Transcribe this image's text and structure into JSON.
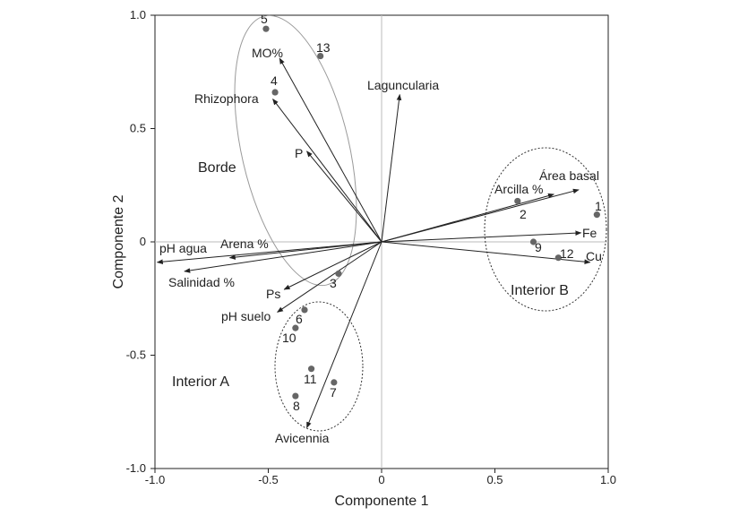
{
  "chart_data": {
    "type": "scatter",
    "xlabel": "Componente 1",
    "ylabel": "Componente 2",
    "xlim": [
      -1.0,
      1.0
    ],
    "ylim": [
      -1.0,
      1.0
    ],
    "x_ticks": [
      -1.0,
      -0.5,
      0,
      0.5,
      1.0
    ],
    "x_tick_labels": [
      "-1.0",
      "-0.5",
      "0",
      "0.5",
      "1.0"
    ],
    "y_ticks": [
      -1.0,
      -0.5,
      0,
      0.5,
      1.0
    ],
    "y_tick_labels": [
      "-1.0",
      "-0.5",
      "0",
      "0.5",
      "1.0"
    ],
    "zero_lines": true,
    "points": [
      {
        "label": "1",
        "x": 0.95,
        "y": 0.12
      },
      {
        "label": "2",
        "x": 0.6,
        "y": 0.18
      },
      {
        "label": "3",
        "x": -0.19,
        "y": -0.14
      },
      {
        "label": "4",
        "x": -0.47,
        "y": 0.66
      },
      {
        "label": "5",
        "x": -0.51,
        "y": 0.94
      },
      {
        "label": "6",
        "x": -0.34,
        "y": -0.3
      },
      {
        "label": "7",
        "x": -0.21,
        "y": -0.62
      },
      {
        "label": "8",
        "x": -0.38,
        "y": -0.68
      },
      {
        "label": "9",
        "x": 0.67,
        "y": 0.0
      },
      {
        "label": "10",
        "x": -0.38,
        "y": -0.38
      },
      {
        "label": "11",
        "x": -0.31,
        "y": -0.56
      },
      {
        "label": "12",
        "x": 0.78,
        "y": -0.07
      },
      {
        "label": "13",
        "x": -0.27,
        "y": 0.82
      }
    ],
    "vectors": [
      {
        "label": "MO%",
        "x": -0.45,
        "y": 0.81
      },
      {
        "label": "Rhizophora",
        "x": -0.48,
        "y": 0.63
      },
      {
        "label": "Laguncularia",
        "x": 0.08,
        "y": 0.65
      },
      {
        "label": "P",
        "x": -0.33,
        "y": 0.4
      },
      {
        "label": "Área basal",
        "x": 0.87,
        "y": 0.23
      },
      {
        "label": "Arcilla %",
        "x": 0.76,
        "y": 0.21
      },
      {
        "label": "Fe",
        "x": 0.88,
        "y": 0.04
      },
      {
        "label": "Cu",
        "x": 0.92,
        "y": -0.09
      },
      {
        "label": "pH agua",
        "x": -0.99,
        "y": -0.09
      },
      {
        "label": "Arena %",
        "x": -0.67,
        "y": -0.07
      },
      {
        "label": "Salinidad %",
        "x": -0.87,
        "y": -0.13
      },
      {
        "label": "Ps",
        "x": -0.43,
        "y": -0.21
      },
      {
        "label": "pH suelo",
        "x": -0.46,
        "y": -0.31
      },
      {
        "label": "Avicennia",
        "x": -0.33,
        "y": -0.82
      }
    ],
    "groups": [
      {
        "label": "Borde",
        "style": "solid-light"
      },
      {
        "label": "Interior A",
        "style": "dotted"
      },
      {
        "label": "Interior B",
        "style": "dotted"
      }
    ]
  }
}
